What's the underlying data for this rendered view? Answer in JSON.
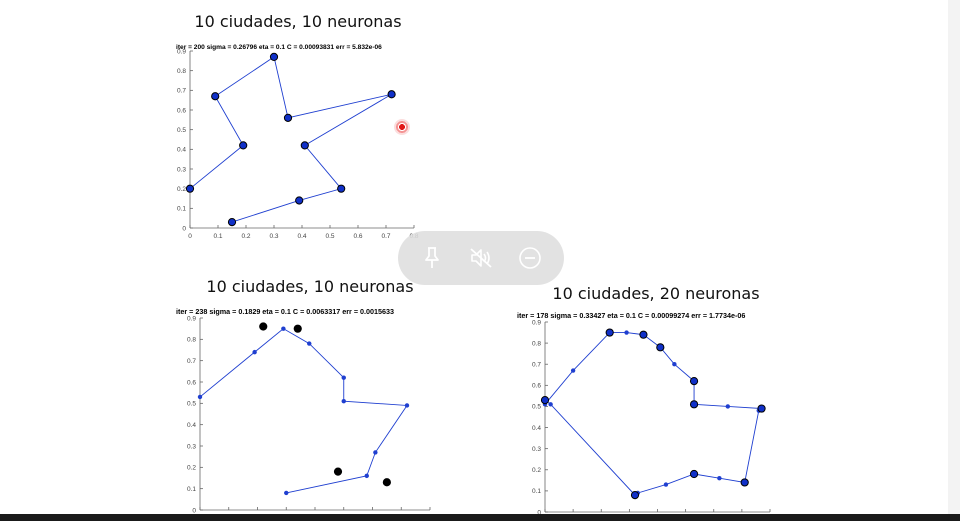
{
  "chart_data": [
    {
      "type": "line",
      "title": "10 ciudades, 10 neuronas",
      "subtitle": "iter = 200   sigma = 0.26796   eta = 0.1   C = 0.00093831   err = 5.832e-06",
      "xlabel": "",
      "ylabel": "",
      "xlim": [
        0,
        0.8
      ],
      "ylim": [
        0,
        0.9
      ],
      "xticks": [
        "0",
        "0.1",
        "0.2",
        "0.3",
        "0.4",
        "0.5",
        "0.6",
        "0.7",
        "0.8"
      ],
      "yticks": [
        "0",
        "0.1",
        "0.2",
        "0.3",
        "0.4",
        "0.5",
        "0.6",
        "0.7",
        "0.8",
        "0.9"
      ],
      "grid": false,
      "series": [
        {
          "role": "route",
          "color": "#1f3fd0",
          "points": [
            [
              0.15,
              0.03
            ],
            [
              0.39,
              0.14
            ],
            [
              0.54,
              0.2
            ],
            [
              0.41,
              0.42
            ],
            [
              0.72,
              0.68
            ],
            [
              0.35,
              0.56
            ],
            [
              0.3,
              0.87
            ],
            [
              0.09,
              0.67
            ],
            [
              0.19,
              0.42
            ],
            [
              0.0,
              0.2
            ]
          ]
        },
        {
          "role": "cities",
          "color": "#0b1a7a",
          "points": [
            [
              0.15,
              0.03
            ],
            [
              0.39,
              0.14
            ],
            [
              0.54,
              0.2
            ],
            [
              0.41,
              0.42
            ],
            [
              0.72,
              0.68
            ],
            [
              0.35,
              0.56
            ],
            [
              0.3,
              0.87
            ],
            [
              0.09,
              0.67
            ],
            [
              0.19,
              0.42
            ],
            [
              0.0,
              0.2
            ]
          ]
        }
      ]
    },
    {
      "type": "line",
      "title": "10 ciudades, 10 neuronas",
      "subtitle": "iter = 238   sigma = 0.1829   eta = 0.1   C = 0.0063317   err = 0.0015633",
      "xlabel": "",
      "ylabel": "",
      "xlim": [
        0,
        0.8
      ],
      "ylim": [
        0,
        0.9
      ],
      "xticks": [],
      "yticks": [
        "0",
        "0.1",
        "0.2",
        "0.3",
        "0.4",
        "0.5",
        "0.6",
        "0.7",
        "0.8",
        "0.9"
      ],
      "grid": false,
      "series": [
        {
          "role": "route",
          "color": "#1f3fd0",
          "points": [
            [
              0.0,
              0.53
            ],
            [
              0.19,
              0.74
            ],
            [
              0.29,
              0.85
            ],
            [
              0.38,
              0.78
            ],
            [
              0.5,
              0.62
            ],
            [
              0.5,
              0.51
            ],
            [
              0.72,
              0.49
            ],
            [
              0.61,
              0.27
            ],
            [
              0.58,
              0.16
            ],
            [
              0.3,
              0.08
            ]
          ]
        },
        {
          "role": "neurons",
          "color": "#0b1a7a",
          "points": [
            [
              0.0,
              0.53
            ],
            [
              0.19,
              0.74
            ],
            [
              0.29,
              0.85
            ],
            [
              0.38,
              0.78
            ],
            [
              0.5,
              0.62
            ],
            [
              0.5,
              0.51
            ],
            [
              0.72,
              0.49
            ],
            [
              0.61,
              0.27
            ],
            [
              0.58,
              0.16
            ],
            [
              0.3,
              0.08
            ]
          ]
        },
        {
          "role": "cities",
          "color": "#000000",
          "points": [
            [
              0.22,
              0.86
            ],
            [
              0.34,
              0.85
            ],
            [
              0.48,
              0.18
            ],
            [
              0.65,
              0.13
            ]
          ]
        }
      ]
    },
    {
      "type": "line",
      "title": "10 ciudades, 20 neuronas",
      "subtitle": "iter = 178   sigma = 0.33427   eta = 0.1   C = 0.00099274   err = 1.7734e-06",
      "xlabel": "",
      "ylabel": "",
      "xlim": [
        0,
        0.8
      ],
      "ylim": [
        0,
        0.9
      ],
      "xticks": [],
      "yticks": [
        "0",
        "0.1",
        "0.2",
        "0.3",
        "0.4",
        "0.5",
        "0.6",
        "0.7",
        "0.8",
        "0.9"
      ],
      "grid": false,
      "series": [
        {
          "role": "route",
          "color": "#1f3fd0",
          "points": [
            [
              0.0,
              0.51
            ],
            [
              0.1,
              0.67
            ],
            [
              0.23,
              0.85
            ],
            [
              0.29,
              0.85
            ],
            [
              0.35,
              0.84
            ],
            [
              0.41,
              0.78
            ],
            [
              0.46,
              0.7
            ],
            [
              0.53,
              0.62
            ],
            [
              0.53,
              0.51
            ],
            [
              0.65,
              0.5
            ],
            [
              0.77,
              0.49
            ],
            [
              0.76,
              0.48
            ],
            [
              0.71,
              0.14
            ],
            [
              0.62,
              0.16
            ],
            [
              0.53,
              0.18
            ],
            [
              0.43,
              0.13
            ],
            [
              0.33,
              0.09
            ],
            [
              0.32,
              0.08
            ],
            [
              0.02,
              0.51
            ],
            [
              0.0,
              0.53
            ]
          ]
        },
        {
          "role": "neurons",
          "color": "#0b1a7a",
          "points": [
            [
              0.0,
              0.51
            ],
            [
              0.1,
              0.67
            ],
            [
              0.23,
              0.85
            ],
            [
              0.29,
              0.85
            ],
            [
              0.35,
              0.84
            ],
            [
              0.41,
              0.78
            ],
            [
              0.46,
              0.7
            ],
            [
              0.53,
              0.62
            ],
            [
              0.53,
              0.51
            ],
            [
              0.65,
              0.5
            ],
            [
              0.77,
              0.49
            ],
            [
              0.76,
              0.48
            ],
            [
              0.71,
              0.14
            ],
            [
              0.62,
              0.16
            ],
            [
              0.53,
              0.18
            ],
            [
              0.43,
              0.13
            ],
            [
              0.33,
              0.09
            ],
            [
              0.32,
              0.08
            ],
            [
              0.02,
              0.51
            ],
            [
              0.0,
              0.53
            ]
          ]
        },
        {
          "role": "cities",
          "color": "#0b1a7a",
          "points": [
            [
              0.0,
              0.53
            ],
            [
              0.23,
              0.85
            ],
            [
              0.35,
              0.84
            ],
            [
              0.41,
              0.78
            ],
            [
              0.53,
              0.62
            ],
            [
              0.53,
              0.51
            ],
            [
              0.77,
              0.49
            ],
            [
              0.71,
              0.14
            ],
            [
              0.53,
              0.18
            ],
            [
              0.32,
              0.08
            ]
          ]
        }
      ]
    }
  ],
  "overlay_toolbar": {
    "pin": {
      "icon": "pin-icon"
    },
    "mute": {
      "icon": "speaker-muted-icon"
    },
    "close": {
      "icon": "minus-circle-icon"
    }
  },
  "cursor": {
    "icon": "cursor-highlight-icon",
    "color": "#e01818"
  }
}
